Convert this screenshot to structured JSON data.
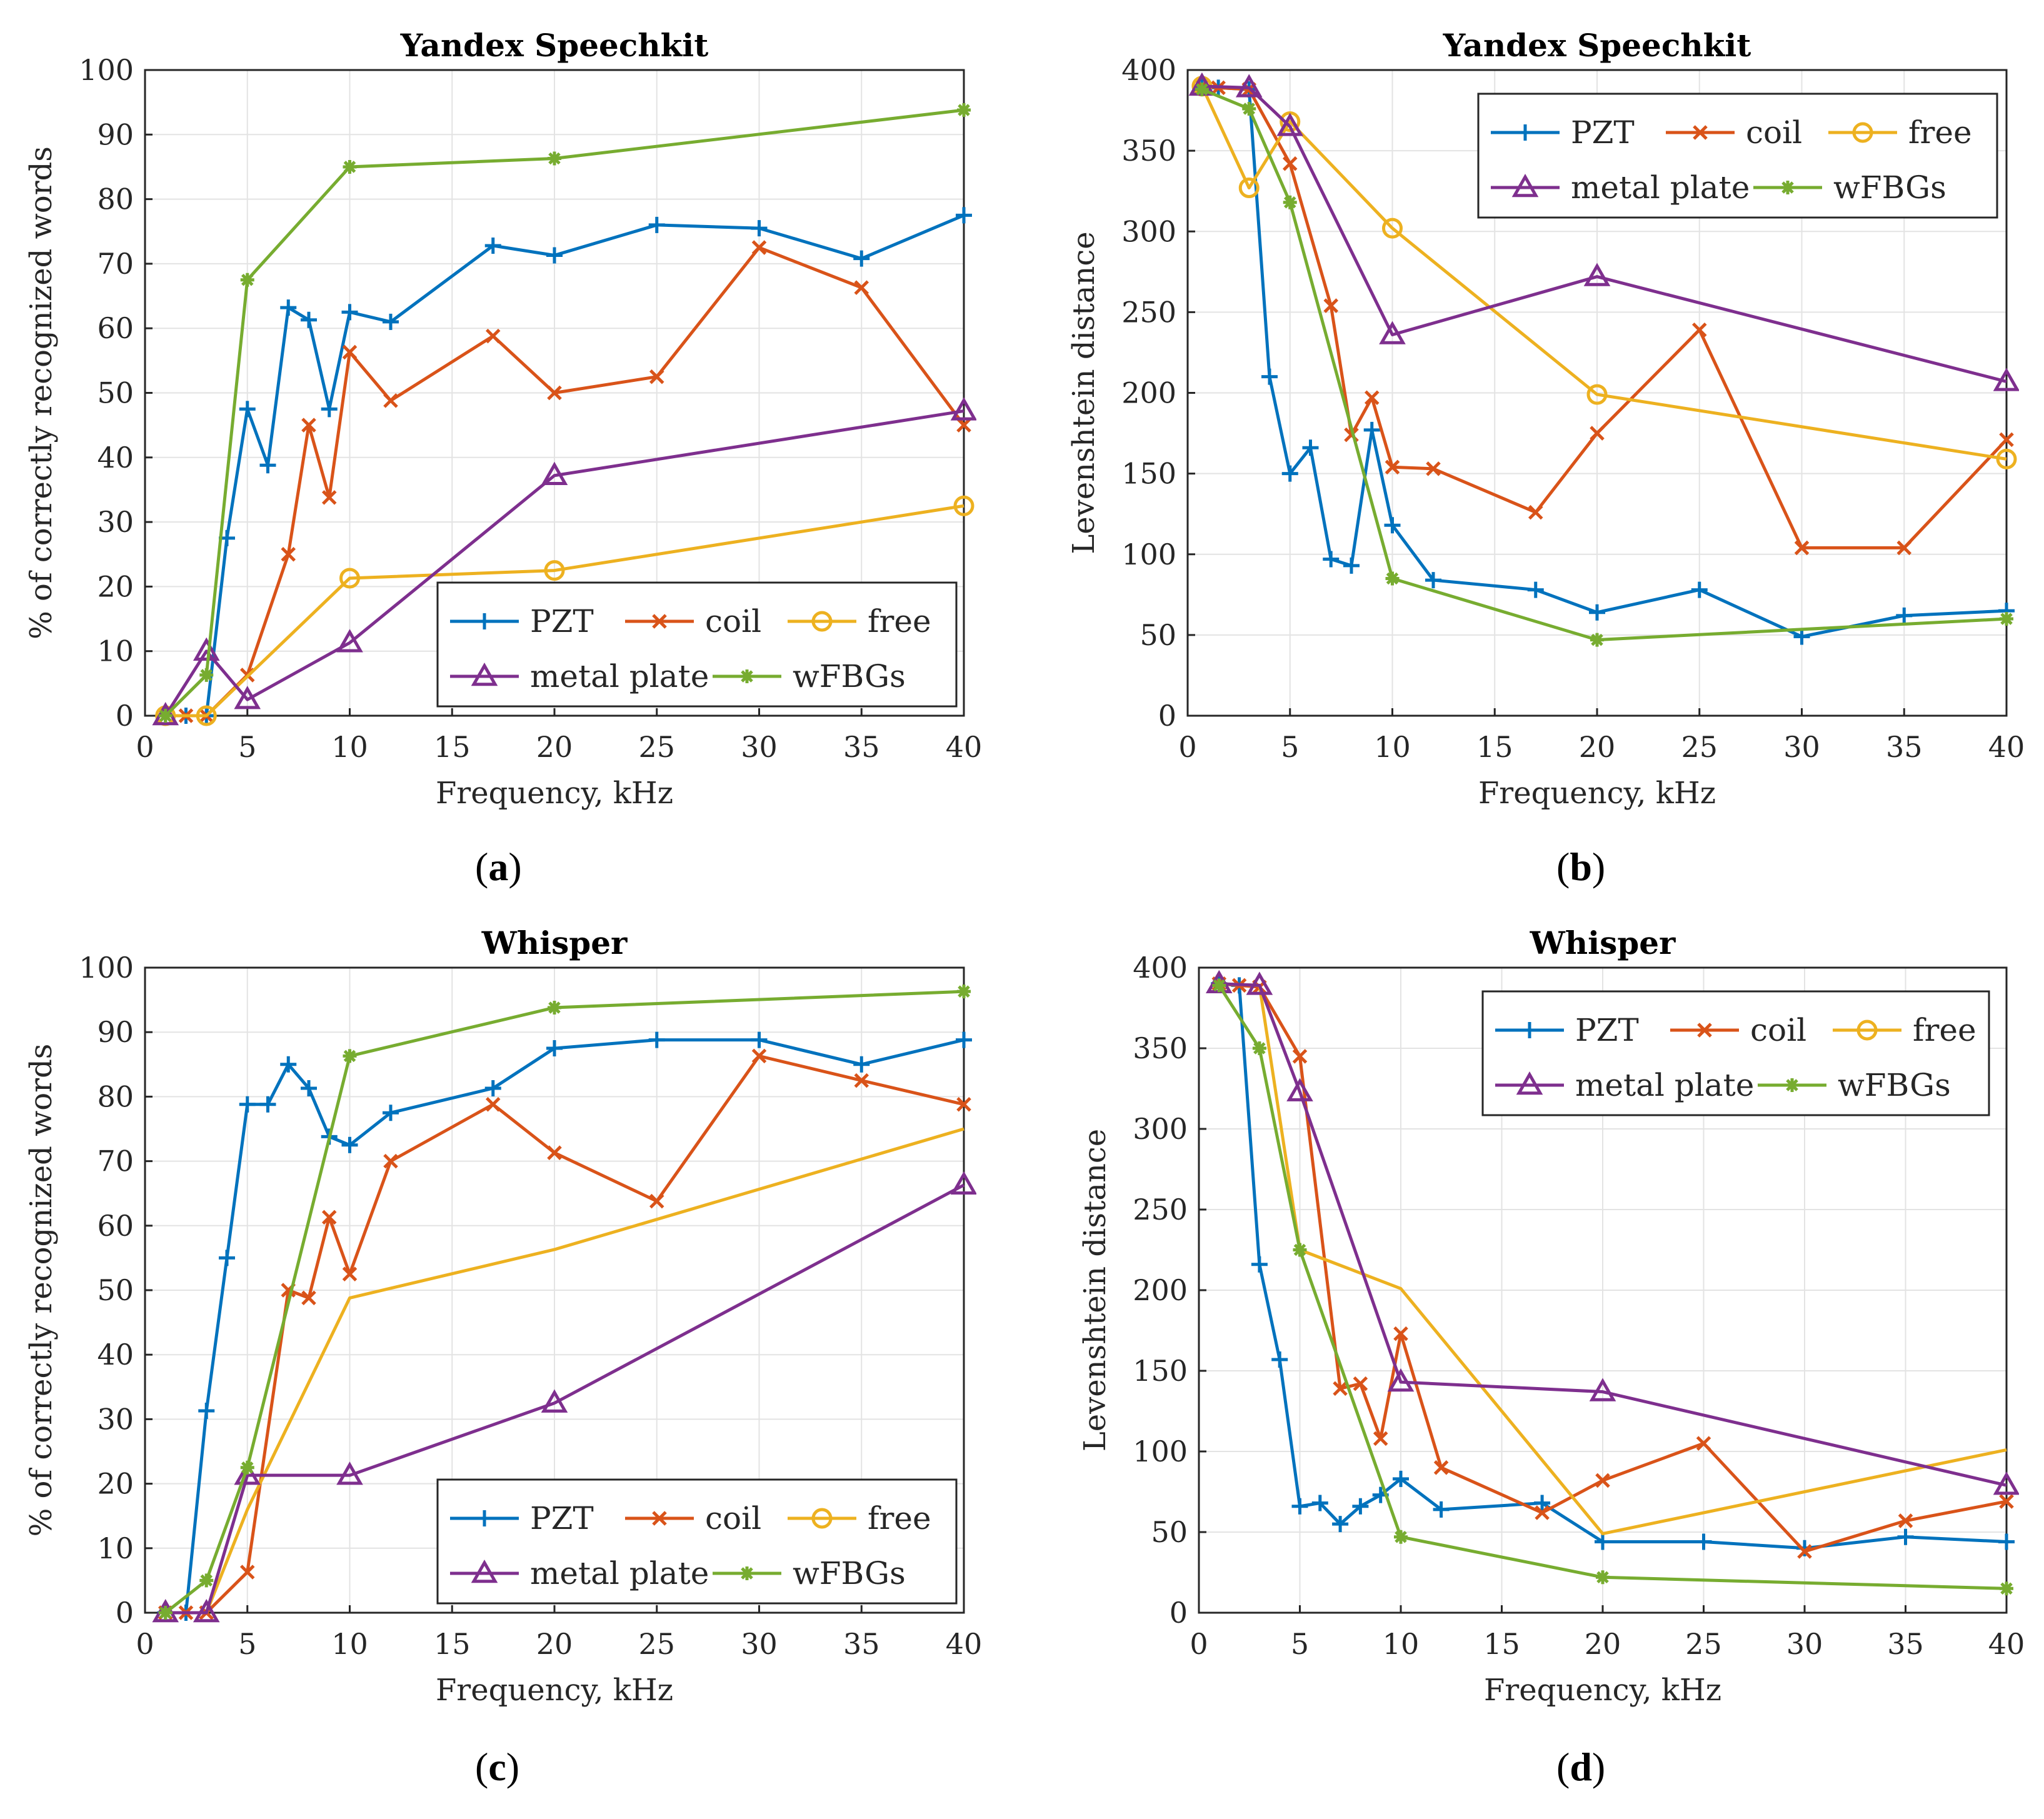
{
  "colors": {
    "PZT": "#0072BD",
    "coil": "#D95319",
    "free": "#EDB120",
    "metal plate": "#7E2F8E",
    "wFBGs": "#77AC30",
    "grid": "#e3e3e3",
    "axis": "#262626"
  },
  "chart_data": [
    {
      "id": "a",
      "panel_label_open": "(",
      "panel_label_letter": "a",
      "panel_label_close": ")",
      "type": "line",
      "title": "Yandex Speechkit",
      "xlabel": "Frequency, kHz",
      "ylabel": "% of correctly recognized words",
      "xlim": [
        0,
        40
      ],
      "ylim": [
        0,
        100
      ],
      "xticks": [
        0,
        5,
        10,
        15,
        20,
        25,
        30,
        35,
        40
      ],
      "yticks": [
        0,
        10,
        20,
        30,
        40,
        50,
        60,
        70,
        80,
        90,
        100
      ],
      "legend_position": "bottom-right",
      "series": [
        {
          "name": "PZT",
          "marker": "plus",
          "x": [
            1,
            2,
            3,
            4,
            5,
            6,
            7,
            8,
            9,
            10,
            12,
            17,
            20,
            25,
            30,
            35,
            40
          ],
          "y": [
            0,
            0,
            0,
            27.5,
            47.5,
            38.8,
            63.2,
            61.3,
            47.5,
            62.5,
            61,
            72.8,
            71.3,
            76,
            75.5,
            70.8,
            77.5
          ]
        },
        {
          "name": "coil",
          "marker": "x",
          "x": [
            1,
            2,
            3,
            5,
            7,
            8,
            9,
            10,
            12,
            17,
            20,
            25,
            30,
            35,
            40
          ],
          "y": [
            0,
            0,
            0,
            6.3,
            25,
            45,
            33.8,
            56.3,
            48.8,
            58.8,
            50,
            52.5,
            72.5,
            66.3,
            45
          ]
        },
        {
          "name": "free",
          "marker": "circle",
          "x": [
            1,
            3,
            10,
            20,
            40
          ],
          "y": [
            0,
            0,
            21.3,
            22.5,
            32.5
          ]
        },
        {
          "name": "metal plate",
          "marker": "triangle",
          "x": [
            1,
            3,
            5,
            10,
            20,
            40
          ],
          "y": [
            0,
            10,
            2.5,
            11.3,
            37.2,
            47.2
          ]
        },
        {
          "name": "wFBGs",
          "marker": "star",
          "x": [
            1,
            3,
            5,
            10,
            20,
            40
          ],
          "y": [
            0,
            6.3,
            67.5,
            85,
            86.3,
            93.8
          ]
        }
      ]
    },
    {
      "id": "b",
      "panel_label_open": "(",
      "panel_label_letter": "b",
      "panel_label_close": ")",
      "type": "line",
      "title": "Yandex Speechkit",
      "xlabel": "Frequency, kHz",
      "ylabel": "Levenshtein distance",
      "xlim": [
        0,
        40
      ],
      "ylim": [
        0,
        400
      ],
      "xticks": [
        0,
        5,
        10,
        15,
        20,
        25,
        30,
        35,
        40
      ],
      "yticks": [
        0,
        50,
        100,
        150,
        200,
        250,
        300,
        350,
        400
      ],
      "legend_position": "top-right",
      "series": [
        {
          "name": "PZT",
          "marker": "plus",
          "x": [
            0.7,
            1.5,
            3,
            4,
            5,
            6,
            7,
            8,
            9,
            10,
            12,
            17,
            20,
            25,
            30,
            35,
            40
          ],
          "y": [
            390,
            389,
            388,
            210,
            150,
            166,
            97,
            93,
            177,
            118,
            84,
            78,
            64,
            78,
            49,
            62,
            65
          ]
        },
        {
          "name": "coil",
          "marker": "x",
          "x": [
            0.7,
            1.5,
            3,
            5,
            7,
            8,
            9,
            10,
            12,
            17,
            20,
            25,
            30,
            35,
            40
          ],
          "y": [
            390,
            389,
            388,
            342,
            254,
            174,
            197,
            154,
            153,
            126,
            175,
            239,
            104,
            104,
            171
          ]
        },
        {
          "name": "free",
          "marker": "circle",
          "x": [
            0.7,
            3,
            5,
            10,
            20,
            40
          ],
          "y": [
            390,
            327,
            368,
            302,
            199,
            159
          ]
        },
        {
          "name": "metal plate",
          "marker": "triangle",
          "x": [
            0.7,
            3,
            5,
            10,
            20,
            40
          ],
          "y": [
            390,
            389,
            365,
            236,
            272,
            207
          ]
        },
        {
          "name": "wFBGs",
          "marker": "star",
          "x": [
            0.7,
            3,
            5,
            10,
            20,
            40
          ],
          "y": [
            388,
            376,
            318,
            85,
            47,
            60
          ]
        }
      ]
    },
    {
      "id": "c",
      "panel_label_open": "(",
      "panel_label_letter": "c",
      "panel_label_close": ")",
      "type": "line",
      "title": "Whisper",
      "xlabel": "Frequency, kHz",
      "ylabel": "% of correctly recognized words",
      "xlim": [
        0,
        40
      ],
      "ylim": [
        0,
        100
      ],
      "xticks": [
        0,
        5,
        10,
        15,
        20,
        25,
        30,
        35,
        40
      ],
      "yticks": [
        0,
        10,
        20,
        30,
        40,
        50,
        60,
        70,
        80,
        90,
        100
      ],
      "legend_position": "bottom-right",
      "series": [
        {
          "name": "PZT",
          "marker": "plus",
          "line_only": false,
          "x": [
            1,
            2,
            3,
            4,
            5,
            6,
            7,
            8,
            9,
            10,
            12,
            17,
            20,
            25,
            30,
            35,
            40
          ],
          "y": [
            0,
            0,
            31.3,
            55,
            78.8,
            78.8,
            85,
            81.3,
            73.8,
            72.5,
            77.5,
            81.3,
            87.5,
            88.8,
            88.8,
            85,
            88.8
          ]
        },
        {
          "name": "coil",
          "marker": "x",
          "line_only": false,
          "x": [
            1,
            2,
            3,
            5,
            7,
            8,
            9,
            10,
            12,
            17,
            20,
            25,
            30,
            35,
            40
          ],
          "y": [
            0,
            0,
            0,
            6.3,
            50,
            48.8,
            61.3,
            52.5,
            70,
            78.8,
            71.3,
            63.8,
            86.3,
            82.5,
            78.8
          ]
        },
        {
          "name": "free",
          "marker": "circle",
          "line_only": true,
          "x": [
            1,
            3,
            5,
            10,
            20,
            40
          ],
          "y": [
            0,
            0,
            16,
            48.8,
            56.3,
            75
          ]
        },
        {
          "name": "metal plate",
          "marker": "triangle",
          "line_only": false,
          "x": [
            1,
            3,
            5,
            10,
            20,
            40
          ],
          "y": [
            0,
            0,
            21.3,
            21.3,
            32.5,
            66.3
          ]
        },
        {
          "name": "wFBGs",
          "marker": "star",
          "line_only": false,
          "x": [
            1,
            3,
            5,
            10,
            20,
            40
          ],
          "y": [
            0,
            5,
            22.5,
            86.3,
            93.8,
            96.3
          ]
        }
      ]
    },
    {
      "id": "d",
      "panel_label_open": "(",
      "panel_label_letter": "d",
      "panel_label_close": ")",
      "type": "line",
      "title": "Whisper",
      "xlabel": "Frequency, kHz",
      "ylabel": "Levenshtein distance",
      "xlim": [
        0,
        40
      ],
      "ylim": [
        0,
        400
      ],
      "xticks": [
        0,
        5,
        10,
        15,
        20,
        25,
        30,
        35,
        40
      ],
      "yticks": [
        0,
        50,
        100,
        150,
        200,
        250,
        300,
        350,
        400
      ],
      "legend_position": "top-right",
      "series": [
        {
          "name": "PZT",
          "marker": "plus",
          "line_only": false,
          "x": [
            1,
            2,
            3,
            4,
            5,
            6,
            7,
            8,
            9,
            10,
            12,
            17,
            20,
            25,
            30,
            35,
            40
          ],
          "y": [
            390,
            389,
            216,
            157,
            66,
            68,
            55,
            66,
            73,
            83,
            64,
            68,
            44,
            44,
            40,
            47,
            44
          ]
        },
        {
          "name": "coil",
          "marker": "x",
          "line_only": false,
          "x": [
            1,
            2,
            3,
            5,
            7,
            8,
            9,
            10,
            12,
            17,
            20,
            25,
            30,
            35,
            40
          ],
          "y": [
            390,
            389,
            388,
            345,
            139,
            142,
            108,
            173,
            90,
            62,
            82,
            105,
            38,
            57,
            69
          ]
        },
        {
          "name": "free",
          "marker": "circle",
          "line_only": true,
          "x": [
            1,
            3,
            5,
            10,
            20,
            40
          ],
          "y": [
            390,
            389,
            225,
            201,
            49,
            101
          ]
        },
        {
          "name": "metal plate",
          "marker": "triangle",
          "line_only": false,
          "x": [
            1,
            3,
            5,
            10,
            20,
            40
          ],
          "y": [
            390,
            389,
            323,
            143,
            137,
            79
          ]
        },
        {
          "name": "wFBGs",
          "marker": "star",
          "line_only": false,
          "x": [
            1,
            3,
            5,
            10,
            20,
            40
          ],
          "y": [
            389,
            350,
            225,
            47,
            22,
            15
          ]
        }
      ]
    }
  ]
}
